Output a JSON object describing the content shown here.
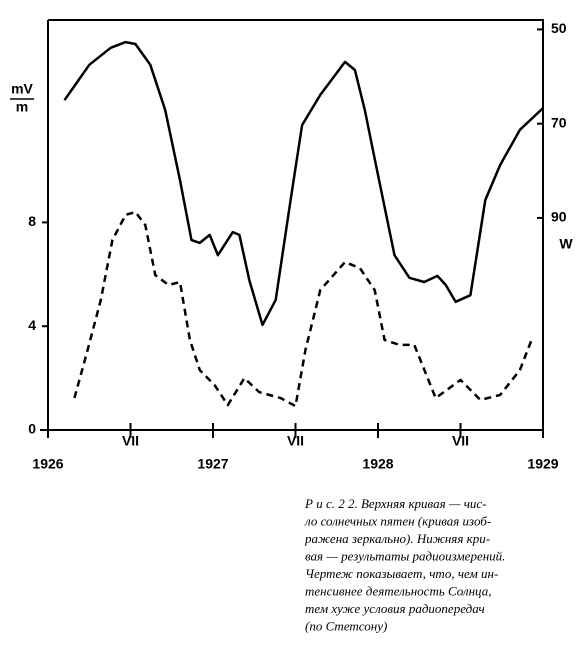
{
  "chart_data": {
    "type": "line",
    "y_label": {
      "numerator": "mV",
      "denominator": "m"
    },
    "y2_label": "W",
    "xlim": [
      1926,
      1929
    ],
    "xticks": [
      1926,
      {
        "value": 1926.5,
        "label": "VII"
      },
      1927,
      {
        "value": 1927.5,
        "label": "VII"
      },
      1928,
      {
        "value": 1928.5,
        "label": "VII"
      },
      1929
    ],
    "ylim": [
      0,
      15.8
    ],
    "yticks": [
      0,
      4,
      8
    ],
    "y2lim": [
      135,
      48
    ],
    "y2ticks": [
      50,
      70,
      90
    ],
    "series": [
      {
        "color": "#000000",
        "dash": false,
        "axis": "y2",
        "x": [
          1926.1,
          1926.25,
          1926.38,
          1926.47,
          1926.53,
          1926.62,
          1926.71,
          1926.8,
          1926.87,
          1926.92,
          1926.98,
          1927.03,
          1927.12,
          1927.16,
          1927.22,
          1927.3,
          1927.38,
          1927.47,
          1927.54,
          1927.65,
          1927.74,
          1927.8,
          1927.86,
          1927.92,
          1928.0,
          1928.1,
          1928.19,
          1928.28,
          1928.36,
          1928.41,
          1928.47,
          1928.56,
          1928.65,
          1928.74,
          1928.86,
          1929.0
        ],
        "values": [
          65.0,
          57.5,
          53.9,
          52.7,
          53.1,
          57.5,
          67.1,
          82.0,
          94.7,
          95.3,
          93.6,
          97.9,
          93.0,
          93.6,
          103.2,
          112.7,
          107.4,
          86.2,
          70.3,
          63.9,
          59.7,
          56.9,
          58.6,
          67.1,
          80.9,
          97.9,
          102.7,
          103.6,
          102.3,
          104.2,
          107.8,
          106.4,
          86.2,
          78.8,
          71.3,
          66.7
        ]
      },
      {
        "color": "#000000",
        "dash": true,
        "x": [
          1926.16,
          1926.24,
          1926.32,
          1926.39,
          1926.47,
          1926.53,
          1926.59,
          1926.65,
          1926.73,
          1926.8,
          1926.86,
          1926.92,
          1927.01,
          1927.09,
          1927.19,
          1927.28,
          1927.41,
          1927.5,
          1927.56,
          1927.65,
          1927.8,
          1927.89,
          1927.98,
          1928.04,
          1928.13,
          1928.22,
          1928.35,
          1928.5,
          1928.62,
          1928.74,
          1928.86,
          1928.93
        ],
        "values": [
          1.23,
          3.08,
          5.01,
          7.32,
          8.29,
          8.4,
          7.9,
          5.97,
          5.59,
          5.7,
          3.47,
          2.31,
          1.73,
          0.96,
          2.0,
          1.46,
          1.23,
          0.92,
          3.08,
          5.39,
          6.47,
          6.24,
          5.39,
          3.47,
          3.28,
          3.28,
          1.23,
          1.93,
          1.16,
          1.35,
          2.31,
          3.47
        ]
      }
    ]
  },
  "caption": [
    "Р и с.  2 2. Верхняя кривая — чис-",
    "ло солнечных пятен (кривая изоб-",
    "ражена зеркально). Нижняя кри-",
    "вая — результаты радиоизмерений.",
    "Чертеж показывает, что, чем ин-",
    "тенсивнее деятельность Солнца,",
    "тем хуже условия радиопередач",
    "(по Стетсону)"
  ]
}
